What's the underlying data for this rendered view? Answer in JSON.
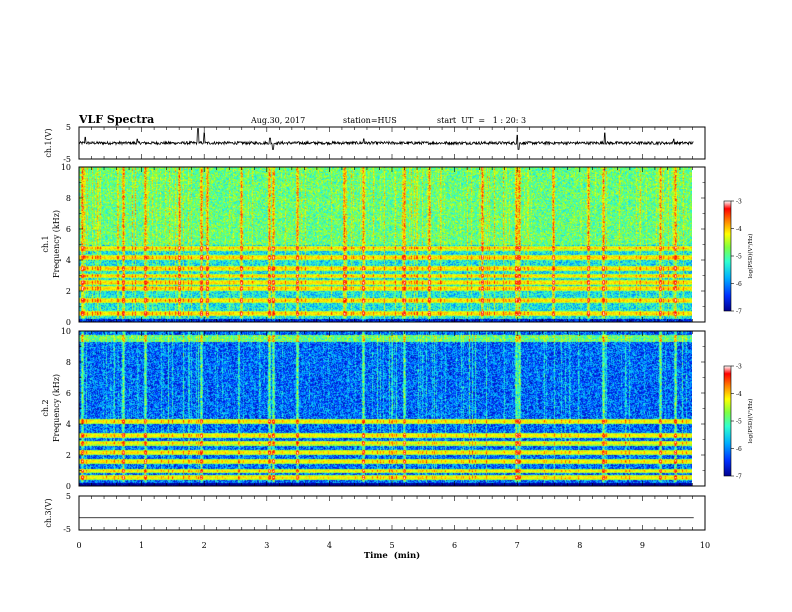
{
  "header": {
    "title": "VLF Spectra",
    "date": "Aug.30, 2017",
    "station": "station=HUS",
    "start": "start  UT  =   1 : 20: 3"
  },
  "chart_data": [
    {
      "type": "line",
      "name": "ch1-voltage",
      "ylabel": "ch.1(V)",
      "ylim": [
        -5,
        5
      ],
      "yticks": [
        "5",
        "-5"
      ],
      "xlim": [
        0,
        9.82
      ],
      "baseline": 0,
      "spikes": [
        {
          "x": 0.1,
          "y": 1.8
        },
        {
          "x": 0.93,
          "y": 1.2
        },
        {
          "x": 1.9,
          "y": 4.5
        },
        {
          "x": 2.0,
          "y": 3.2
        },
        {
          "x": 3.05,
          "y": 1.5
        },
        {
          "x": 3.1,
          "y": -2.0
        },
        {
          "x": 4.55,
          "y": 1.3
        },
        {
          "x": 7.0,
          "y": 2.4
        },
        {
          "x": 7.02,
          "y": -2.0
        },
        {
          "x": 8.4,
          "y": 3.1
        },
        {
          "x": 9.5,
          "y": 1.2
        }
      ]
    },
    {
      "type": "heatmap",
      "name": "ch1-spectrogram",
      "ylabel_line1": "ch.1",
      "ylabel_line2": "Frequency (kHz)",
      "xlim": [
        0,
        9.82
      ],
      "ylim": [
        0,
        10
      ],
      "yticks": [
        "0",
        "2",
        "4",
        "6",
        "8",
        "10"
      ],
      "colorbar": {
        "label": "log(PSD)(V²/Hz)",
        "ticks": [
          "-3",
          "-4",
          "-5",
          "-6",
          "-7"
        ],
        "range": [
          -7,
          -3
        ]
      },
      "background_level": -5.7,
      "upper_band": {
        "from_khz": 5.0,
        "to_khz": 10.0,
        "level": -5.2
      },
      "harmonic_lines_khz": [
        0.6,
        1.4,
        2.2,
        2.6,
        3.0,
        3.5,
        4.2,
        4.8
      ],
      "harmonic_level": -4.4,
      "impulse_times_min": [
        0.05,
        0.7,
        1.05,
        1.6,
        1.95,
        2.05,
        2.6,
        3.05,
        3.1,
        3.5,
        4.25,
        4.55,
        5.2,
        5.6,
        6.45,
        7.0,
        7.05,
        7.6,
        8.15,
        8.4,
        9.3,
        9.55
      ]
    },
    {
      "type": "heatmap",
      "name": "ch2-spectrogram",
      "ylabel_line1": "ch.2",
      "ylabel_line2": "Frequency (kHz)",
      "xlim": [
        0,
        9.82
      ],
      "ylim": [
        0,
        10
      ],
      "yticks": [
        "0",
        "2",
        "4",
        "6",
        "8",
        "10"
      ],
      "colorbar": {
        "label": "log(PSD)(V²/Hz)",
        "ticks": [
          "-3",
          "-4",
          "-5",
          "-6",
          "-7"
        ],
        "range": [
          -7,
          -3
        ]
      },
      "background_level": -6.3,
      "upper_band": {
        "from_khz": 9.3,
        "to_khz": 9.8,
        "level": -5.2
      },
      "harmonic_lines_khz": [
        0.6,
        1.0,
        1.6,
        2.2,
        2.8,
        3.3,
        4.2
      ],
      "harmonic_level": -4.5,
      "impulse_times_min": [
        0.05,
        0.7,
        1.05,
        1.95,
        3.05,
        3.1,
        3.5,
        4.55,
        5.2,
        7.0,
        7.05,
        8.4,
        9.3,
        9.55
      ]
    },
    {
      "type": "line",
      "name": "ch3-voltage",
      "ylabel": "ch.3(V)",
      "ylim": [
        -5,
        5
      ],
      "yticks": [
        "5",
        "-5"
      ],
      "xlim": [
        0,
        9.82
      ],
      "x": [
        0,
        9.82
      ],
      "y": [
        -1.4,
        -1.4
      ]
    }
  ],
  "xaxis": {
    "label": "Time  (min)",
    "ticks": [
      "0",
      "1",
      "2",
      "3",
      "4",
      "5",
      "6",
      "7",
      "8",
      "9",
      "10"
    ],
    "range": [
      0,
      10
    ]
  },
  "colors": {
    "colormap": [
      "#000090",
      "#0030ff",
      "#00b0ff",
      "#30ffd0",
      "#80ff40",
      "#ffff00",
      "#ff8000",
      "#ff0000",
      "#ffffff"
    ]
  }
}
